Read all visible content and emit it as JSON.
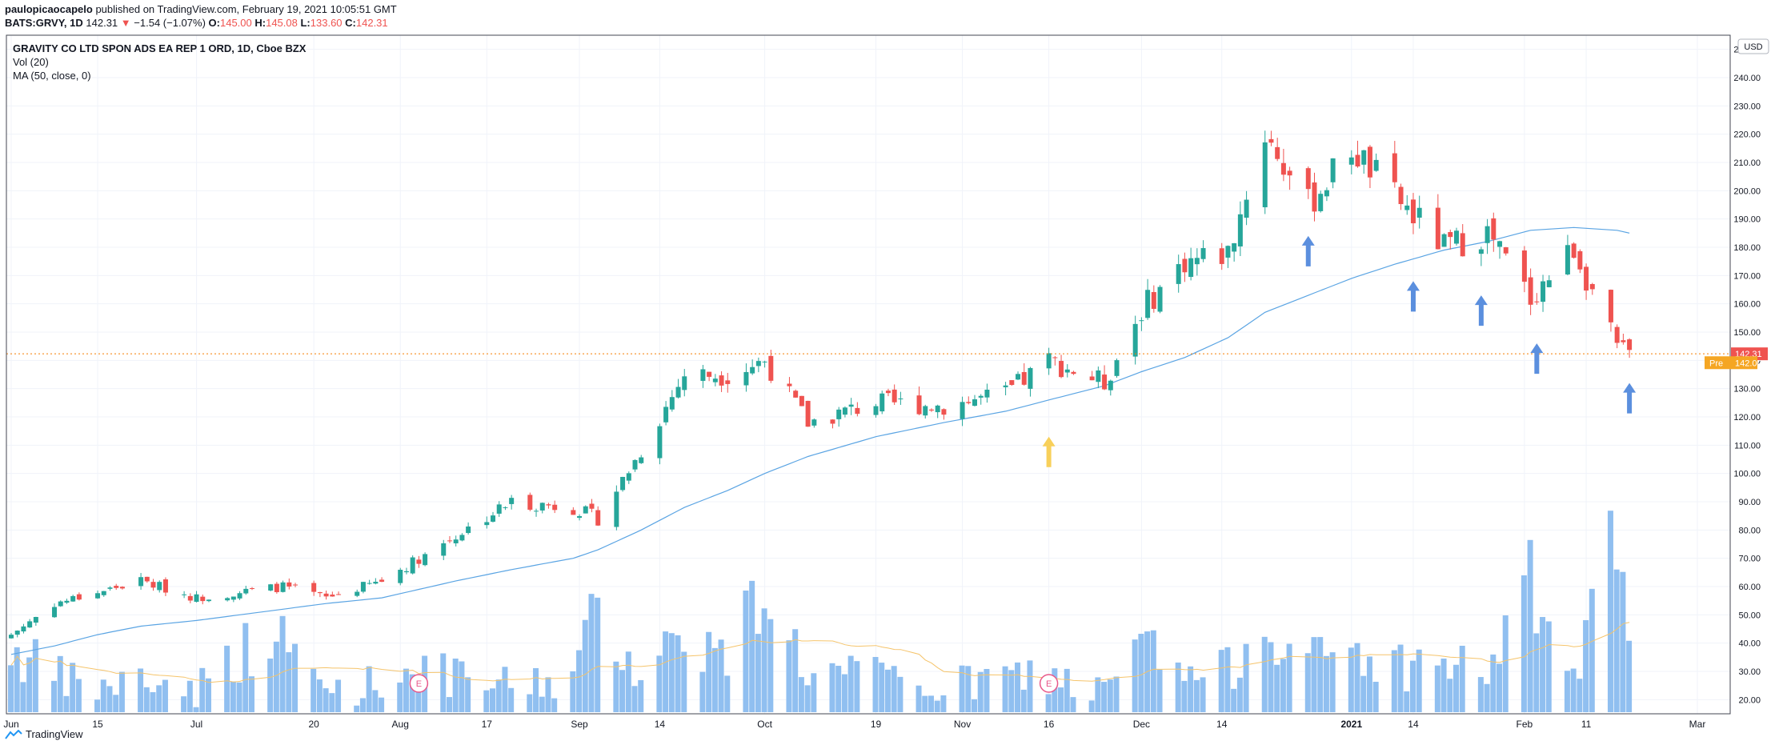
{
  "header": {
    "publisher": "paulopicaocapelo",
    "published_text": "published on TradingView.com, February 19, 2021 10:05:51 GMT",
    "symbol": "BATS:GRVY, 1D",
    "last": "142.31",
    "change": "−1.54 (−1.07%)",
    "o_label": "O:",
    "o": "145.00",
    "h_label": "H:",
    "h": "145.08",
    "l_label": "L:",
    "l": "133.60",
    "c_label": "C:",
    "c": "142.31"
  },
  "legend": {
    "title": "GRAVITY CO LTD SPON ADS EA REP 1 ORD, 1D, Cboe BZX",
    "vol": "Vol (20)",
    "ma": "MA (50, close, 0)"
  },
  "footer": {
    "brand": "TradingView"
  },
  "colors": {
    "up": "#26a69a",
    "down": "#ef5350",
    "ma": "#5aa4e3",
    "vol_bar": "#90bff0",
    "vol_ma": "#f5c46b",
    "arrow_blue": "#5b8fde",
    "arrow_yellow": "#f8d05a",
    "price_line": "#f57c00",
    "pre_bg": "#f5a623",
    "last_bg": "#ef5350"
  },
  "chart_data": {
    "type": "candlestick",
    "currency": "USD",
    "ylim": [
      15,
      255
    ],
    "y_ticks": [
      20,
      30,
      40,
      50,
      60,
      70,
      80,
      90,
      100,
      110,
      120,
      130,
      140,
      150,
      160,
      170,
      180,
      190,
      200,
      210,
      220,
      230,
      240,
      250
    ],
    "x_ticks": [
      {
        "label": "Jun",
        "date": "2020-06-01"
      },
      {
        "label": "15",
        "date": "2020-06-15"
      },
      {
        "label": "Jul",
        "date": "2020-07-01"
      },
      {
        "label": "20",
        "date": "2020-07-20"
      },
      {
        "label": "Aug",
        "date": "2020-08-03"
      },
      {
        "label": "17",
        "date": "2020-08-17"
      },
      {
        "label": "Sep",
        "date": "2020-09-01"
      },
      {
        "label": "14",
        "date": "2020-09-14"
      },
      {
        "label": "Oct",
        "date": "2020-10-01"
      },
      {
        "label": "19",
        "date": "2020-10-19"
      },
      {
        "label": "Nov",
        "date": "2020-11-02"
      },
      {
        "label": "16",
        "date": "2020-11-16"
      },
      {
        "label": "Dec",
        "date": "2020-12-01"
      },
      {
        "label": "14",
        "date": "2020-12-14"
      },
      {
        "label": "2021",
        "date": "2021-01-04"
      },
      {
        "label": "14",
        "date": "2021-01-14"
      },
      {
        "label": "Feb",
        "date": "2021-02-01"
      },
      {
        "label": "11",
        "date": "2021-02-11"
      },
      {
        "label": "Mar",
        "date": "2021-03-01"
      }
    ],
    "last_price": {
      "label": "142.31",
      "value": 142.31
    },
    "pre_market": {
      "label": "Pre",
      "price": "142.00",
      "value": 142.0
    },
    "earnings_markers": [
      {
        "label": "E",
        "date": "2020-08-06"
      },
      {
        "label": "E",
        "date": "2020-11-16"
      }
    ],
    "arrows": [
      {
        "color": "yellow",
        "date": "2020-11-16",
        "value": 113
      },
      {
        "color": "blue",
        "date": "2020-12-28",
        "value": 184
      },
      {
        "color": "blue",
        "date": "2021-01-14",
        "value": 168
      },
      {
        "color": "blue",
        "date": "2021-01-25",
        "value": 163
      },
      {
        "color": "blue",
        "date": "2021-02-03",
        "value": 146
      },
      {
        "color": "blue",
        "date": "2021-02-18",
        "value": 132
      }
    ],
    "keypoints": [
      {
        "date": "2020-06-01",
        "close": 43,
        "ma": 36,
        "vol": 38
      },
      {
        "date": "2020-06-08",
        "close": 54,
        "ma": 39,
        "vol": 28
      },
      {
        "date": "2020-06-15",
        "close": 58,
        "ma": 43,
        "vol": 24
      },
      {
        "date": "2020-06-22",
        "close": 62,
        "ma": 46,
        "vol": 27
      },
      {
        "date": "2020-07-01",
        "close": 56,
        "ma": 48,
        "vol": 24
      },
      {
        "date": "2020-07-08",
        "close": 58,
        "ma": 50,
        "vol": 37
      },
      {
        "date": "2020-07-15",
        "close": 60,
        "ma": 52,
        "vol": 40
      },
      {
        "date": "2020-07-22",
        "close": 56,
        "ma": 54,
        "vol": 24
      },
      {
        "date": "2020-07-31",
        "close": 62,
        "ma": 56,
        "vol": 26
      },
      {
        "date": "2020-08-06",
        "close": 70,
        "ma": 59,
        "vol": 32
      },
      {
        "date": "2020-08-12",
        "close": 78,
        "ma": 62,
        "vol": 27
      },
      {
        "date": "2020-08-21",
        "close": 90,
        "ma": 66,
        "vol": 25
      },
      {
        "date": "2020-08-31",
        "close": 88,
        "ma": 70,
        "vol": 28
      },
      {
        "date": "2020-09-04",
        "close": 84,
        "ma": 73,
        "vol": 52
      },
      {
        "date": "2020-09-11",
        "close": 108,
        "ma": 80,
        "vol": 30
      },
      {
        "date": "2020-09-18",
        "close": 135,
        "ma": 88,
        "vol": 45
      },
      {
        "date": "2020-09-25",
        "close": 135,
        "ma": 94,
        "vol": 34
      },
      {
        "date": "2020-10-01",
        "close": 140,
        "ma": 100,
        "vol": 62
      },
      {
        "date": "2020-10-08",
        "close": 118,
        "ma": 106,
        "vol": 30
      },
      {
        "date": "2020-10-19",
        "close": 125,
        "ma": 113,
        "vol": 28
      },
      {
        "date": "2020-10-30",
        "close": 124,
        "ma": 118,
        "vol": 24
      },
      {
        "date": "2020-11-09",
        "close": 128,
        "ma": 122,
        "vol": 28
      },
      {
        "date": "2020-11-16",
        "close": 140,
        "ma": 126,
        "vol": 29
      },
      {
        "date": "2020-11-25",
        "close": 132,
        "ma": 131,
        "vol": 22
      },
      {
        "date": "2020-12-01",
        "close": 158,
        "ma": 136,
        "vol": 40
      },
      {
        "date": "2020-12-08",
        "close": 175,
        "ma": 141,
        "vol": 28
      },
      {
        "date": "2020-12-15",
        "close": 178,
        "ma": 148,
        "vol": 30
      },
      {
        "date": "2020-12-21",
        "close": 220,
        "ma": 157,
        "vol": 50
      },
      {
        "date": "2020-12-28",
        "close": 195,
        "ma": 163,
        "vol": 33
      },
      {
        "date": "2021-01-04",
        "close": 215,
        "ma": 169,
        "vol": 38
      },
      {
        "date": "2021-01-11",
        "close": 198,
        "ma": 174,
        "vol": 32
      },
      {
        "date": "2021-01-19",
        "close": 180,
        "ma": 179,
        "vol": 33
      },
      {
        "date": "2021-01-26",
        "close": 185,
        "ma": 182,
        "vol": 30
      },
      {
        "date": "2021-02-02",
        "close": 162,
        "ma": 186,
        "vol": 60
      },
      {
        "date": "2021-02-09",
        "close": 180,
        "ma": 187,
        "vol": 26
      },
      {
        "date": "2021-02-16",
        "close": 144,
        "ma": 186,
        "vol": 77
      },
      {
        "date": "2021-02-18",
        "close": 142.31,
        "ma": 185,
        "vol": 35
      }
    ]
  }
}
